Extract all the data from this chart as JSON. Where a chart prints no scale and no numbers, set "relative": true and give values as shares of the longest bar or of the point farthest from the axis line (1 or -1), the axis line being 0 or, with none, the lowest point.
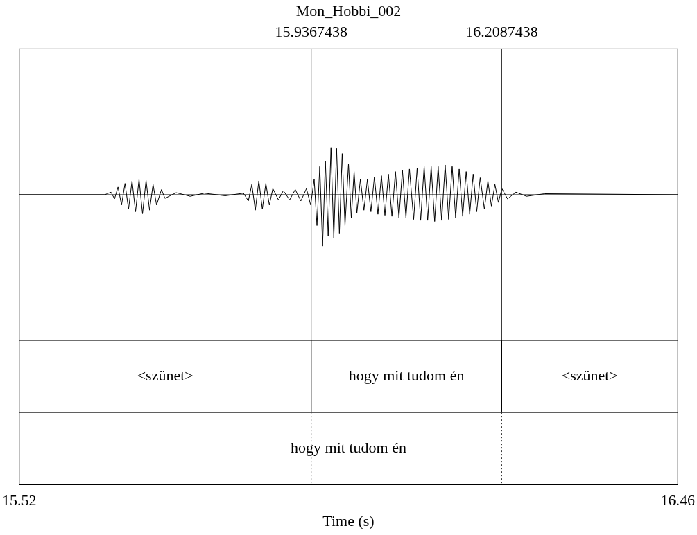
{
  "chart_data": {
    "type": "line",
    "title": "Mon_Hobbi_002",
    "xlabel": "Time (s)",
    "relative": true,
    "color": "#000000",
    "marker": "none",
    "grid": false,
    "legend": false,
    "xlim": [
      15.52,
      16.46
    ],
    "xticks": [
      15.52,
      16.46
    ],
    "x": [
      15.52,
      15.642,
      15.651,
      15.656,
      15.661,
      15.666,
      15.671,
      15.676,
      15.681,
      15.686,
      15.691,
      15.696,
      15.701,
      15.706,
      15.711,
      15.716,
      15.723,
      15.728,
      15.744,
      15.764,
      15.784,
      15.814,
      15.84,
      15.847,
      15.852,
      15.857,
      15.862,
      15.867,
      15.872,
      15.877,
      15.882,
      15.89,
      15.897,
      15.906,
      15.914,
      15.922,
      15.93,
      15.936,
      15.941,
      15.945,
      15.949,
      15.953,
      15.957,
      15.961,
      15.965,
      15.969,
      15.973,
      15.977,
      15.981,
      15.985,
      15.99,
      15.994,
      15.998,
      16.002,
      16.007,
      16.012,
      16.017,
      16.022,
      16.027,
      16.032,
      16.037,
      16.042,
      16.047,
      16.052,
      16.057,
      16.062,
      16.067,
      16.072,
      16.077,
      16.083,
      16.088,
      16.093,
      16.098,
      16.103,
      16.108,
      16.113,
      16.118,
      16.123,
      16.128,
      16.133,
      16.138,
      16.143,
      16.148,
      16.153,
      16.158,
      16.163,
      16.168,
      16.173,
      16.178,
      16.184,
      16.189,
      16.194,
      16.199,
      16.204,
      16.209,
      16.217,
      16.229,
      16.244,
      16.27,
      16.46
    ],
    "values": [
      0,
      0,
      0.05,
      -0.08,
      0.15,
      -0.2,
      0.22,
      -0.28,
      0.27,
      -0.33,
      0.3,
      -0.37,
      0.28,
      -0.3,
      0.2,
      -0.2,
      0.1,
      -0.07,
      0.04,
      -0.03,
      0.03,
      -0.02,
      0.03,
      -0.12,
      0.2,
      -0.3,
      0.27,
      -0.28,
      0.22,
      -0.2,
      0.12,
      -0.1,
      0.08,
      -0.1,
      0.1,
      -0.12,
      0.12,
      -0.2,
      0.3,
      -0.6,
      0.55,
      -1,
      0.65,
      -0.8,
      0.92,
      -0.85,
      0.9,
      -0.75,
      0.8,
      -0.6,
      0.6,
      -0.45,
      0.45,
      -0.35,
      0.3,
      -0.3,
      0.3,
      -0.33,
      0.35,
      -0.38,
      0.37,
      -0.4,
      0.4,
      -0.42,
      0.45,
      -0.45,
      0.48,
      -0.45,
      0.5,
      -0.48,
      0.52,
      -0.5,
      0.55,
      -0.5,
      0.55,
      -0.52,
      0.55,
      -0.5,
      0.58,
      -0.48,
      0.55,
      -0.45,
      0.5,
      -0.42,
      0.45,
      -0.38,
      0.4,
      -0.33,
      0.33,
      -0.28,
      0.27,
      -0.22,
      0.2,
      -0.15,
      0.12,
      -0.08,
      0.05,
      -0.03,
      0.02,
      0
    ],
    "ref_lines": [
      {
        "axis": "x",
        "value": 15.9367438,
        "label": "15.9367438"
      },
      {
        "axis": "x",
        "value": 16.2087438,
        "label": "16.2087438"
      }
    ],
    "annotations": [
      "<szünet>",
      "hogy mit tudom én",
      "<szünet>",
      "hogy mit tudom én"
    ]
  }
}
